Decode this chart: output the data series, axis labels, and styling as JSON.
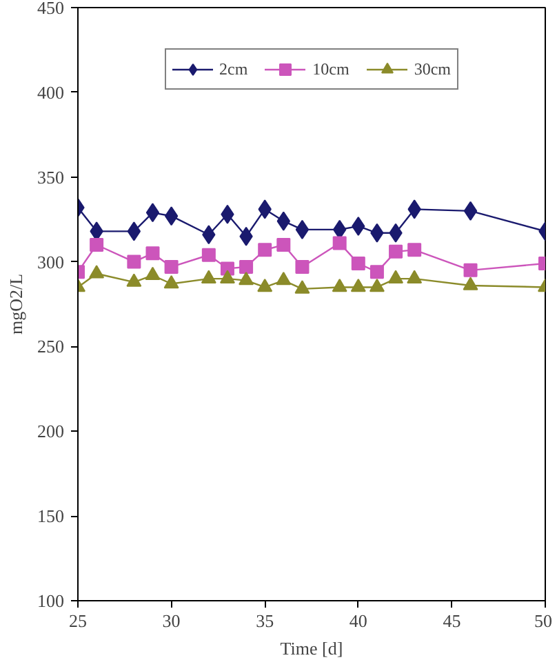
{
  "chart_data": {
    "type": "line",
    "xlabel": "Time [d]",
    "ylabel": "mgO2/L",
    "x": [
      25,
      26,
      28,
      29,
      30,
      32,
      33,
      34,
      35,
      36,
      37,
      39,
      40,
      41,
      42,
      43,
      46,
      50
    ],
    "series": [
      {
        "name": "2cm",
        "color": "#1a1a6e",
        "marker": "diamond",
        "values": [
          332,
          318,
          318,
          329,
          327,
          316,
          328,
          315,
          331,
          324,
          319,
          319,
          321,
          317,
          317,
          331,
          330,
          318
        ]
      },
      {
        "name": "10cm",
        "color": "#cc55bb",
        "marker": "square",
        "values": [
          294,
          310,
          300,
          305,
          297,
          304,
          296,
          297,
          307,
          310,
          297,
          311,
          299,
          294,
          306,
          307,
          295,
          299
        ]
      },
      {
        "name": "30cm",
        "color": "#8b8b2a",
        "marker": "triangle",
        "values": [
          285,
          293,
          288,
          292,
          287,
          290,
          290,
          289,
          285,
          289,
          284,
          285,
          285,
          285,
          290,
          290,
          286,
          285
        ]
      }
    ],
    "xlim": [
      25,
      50
    ],
    "xticks": [
      25,
      30,
      35,
      40,
      45,
      50
    ],
    "ylim": [
      100,
      450
    ],
    "yticks": [
      100,
      150,
      200,
      250,
      300,
      350,
      400,
      450
    ],
    "grid": false,
    "legend": "top"
  }
}
